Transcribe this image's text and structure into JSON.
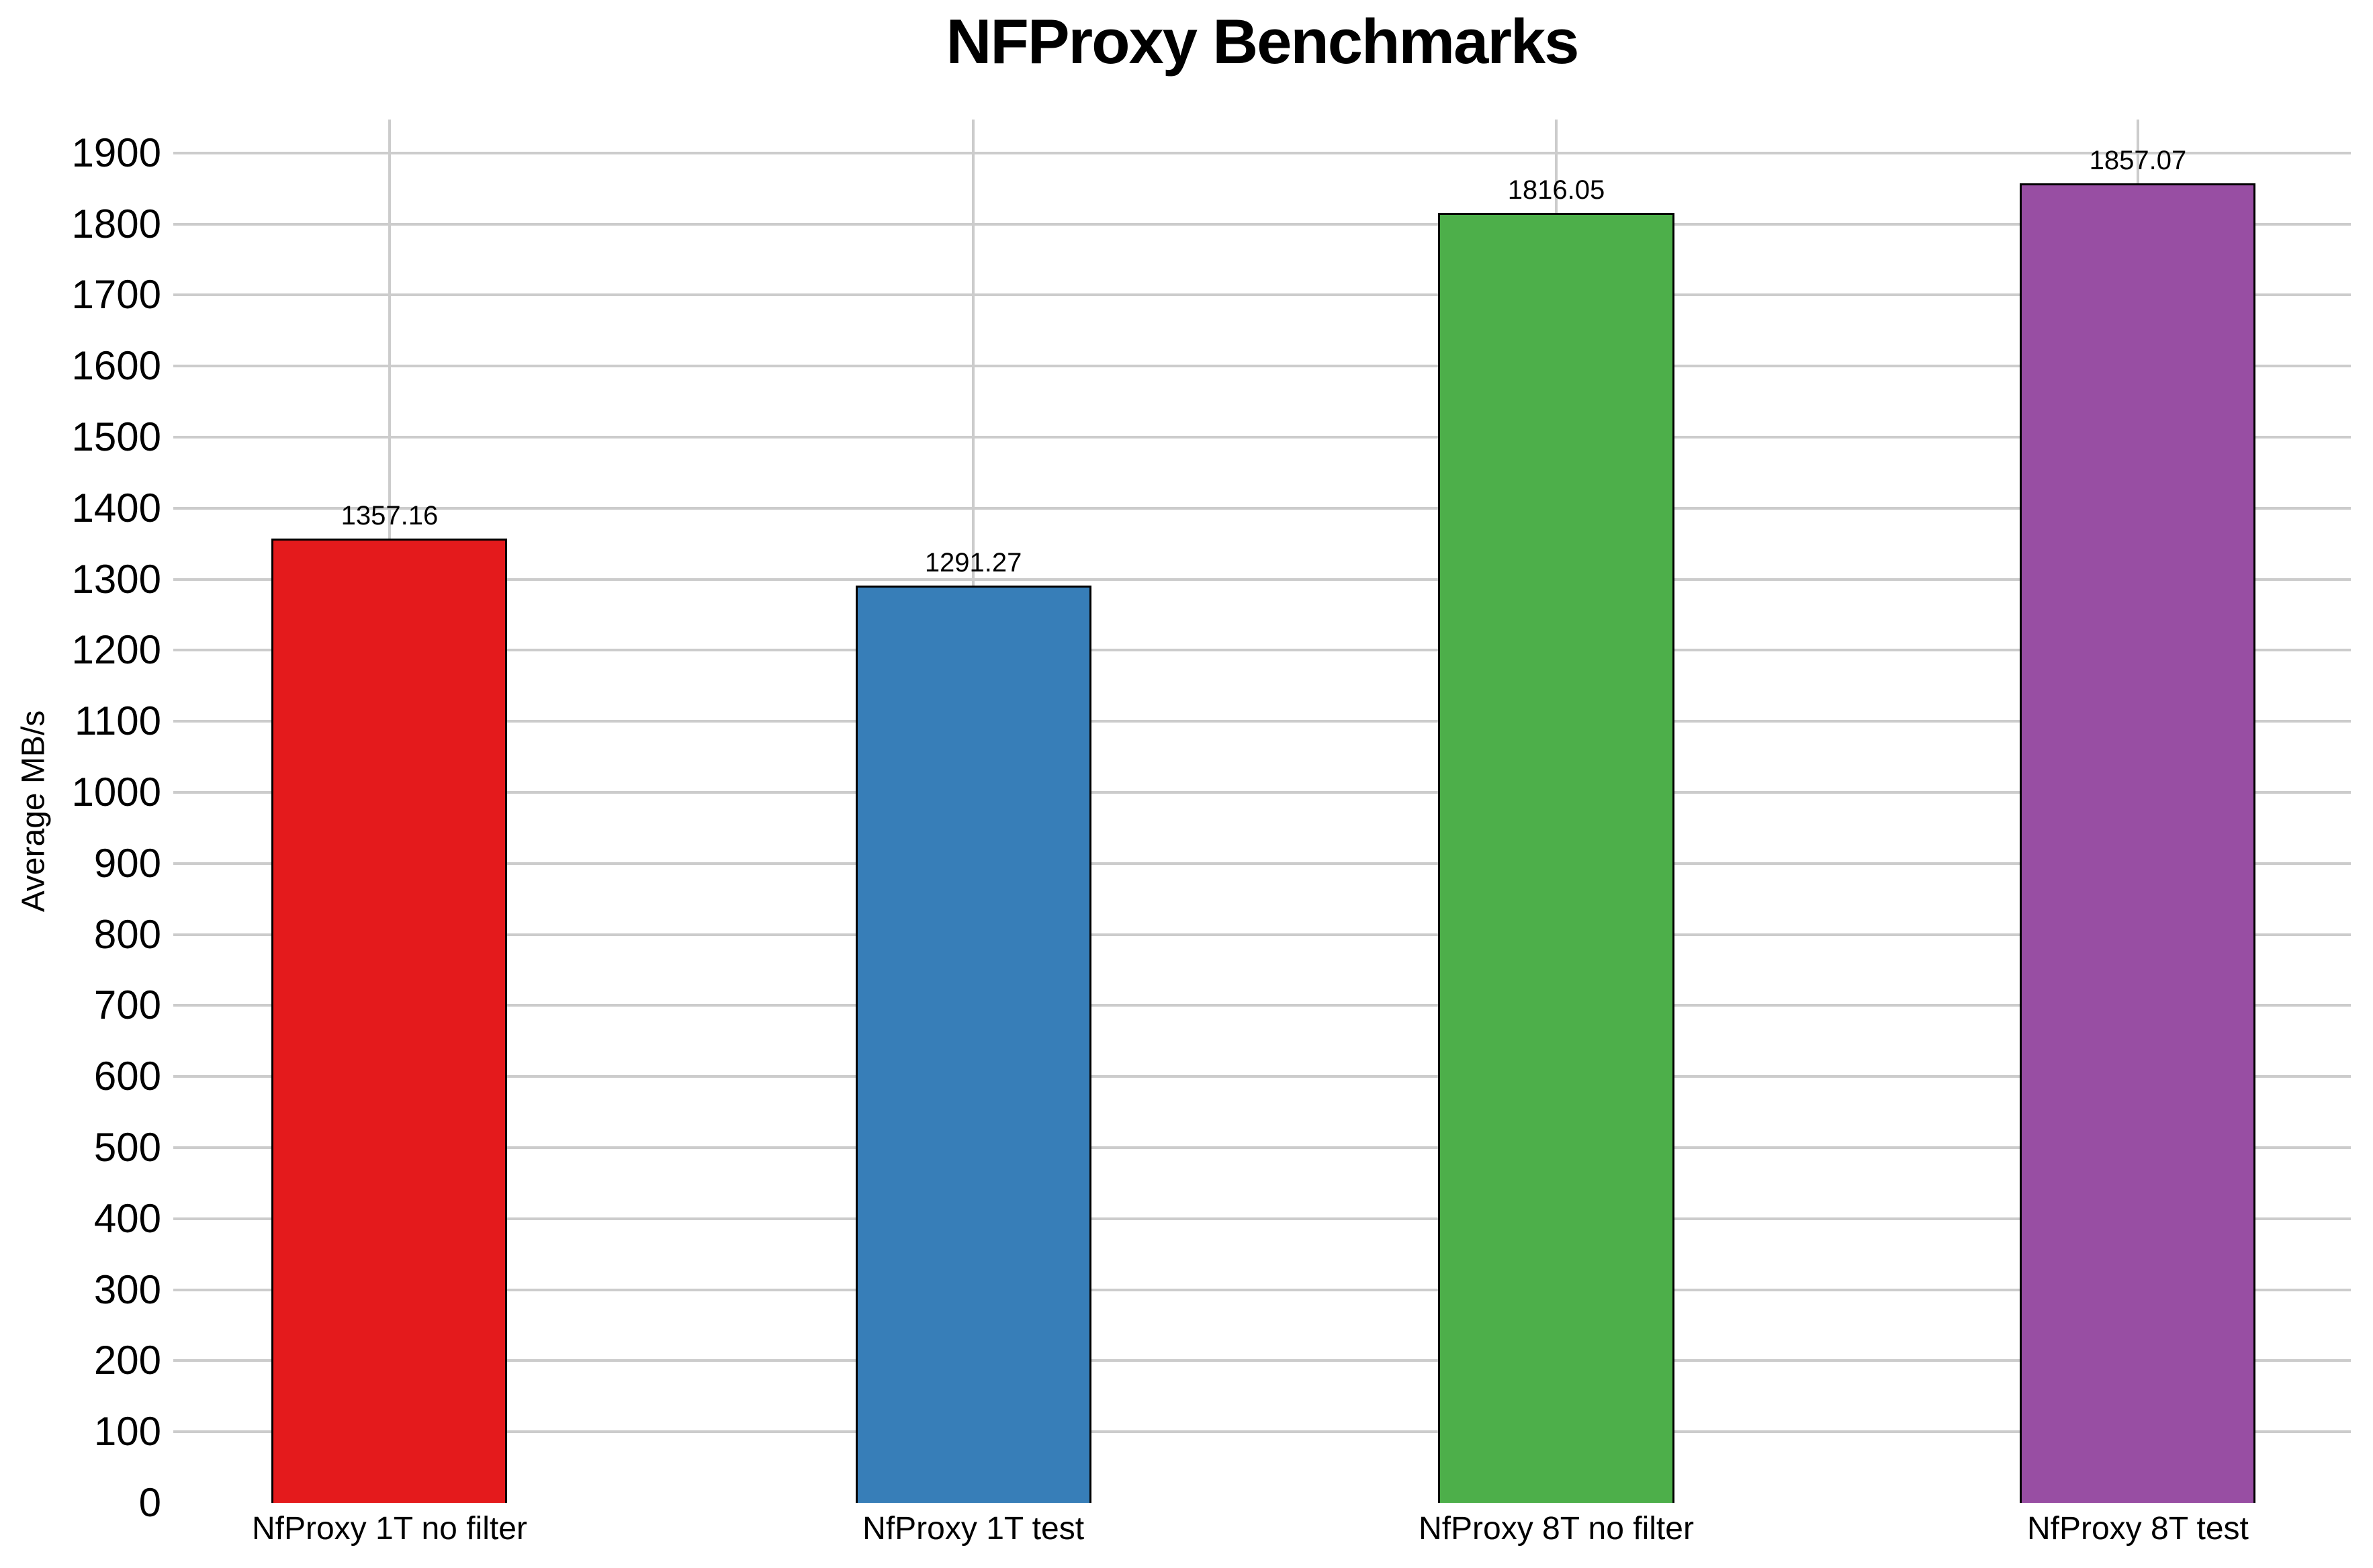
{
  "chart_data": {
    "type": "bar",
    "title": "NFProxy Benchmarks",
    "ylabel": "Average MB/s",
    "xlabel": "",
    "categories": [
      "NfProxy 1T no filter",
      "NfProxy 1T test",
      "NfProxy 8T no filter",
      "NfProxy 8T test"
    ],
    "values": [
      1357.16,
      1291.27,
      1816.05,
      1857.07
    ],
    "value_labels": [
      "1357.16",
      "1291.27",
      "1816.05",
      "1857.07"
    ],
    "bar_colors": [
      "#e41a1c",
      "#377eb8",
      "#4daf4a",
      "#984ea3"
    ],
    "bar_border_color": "#000000",
    "ylim": [
      0,
      1947
    ],
    "yticks": [
      0,
      100,
      200,
      300,
      400,
      500,
      600,
      700,
      800,
      900,
      1000,
      1100,
      1200,
      1300,
      1400,
      1500,
      1600,
      1700,
      1800,
      1900
    ],
    "grid": true,
    "gridline_color": "#cccccc",
    "background_color": "#ffffff",
    "legend_position": "none"
  }
}
